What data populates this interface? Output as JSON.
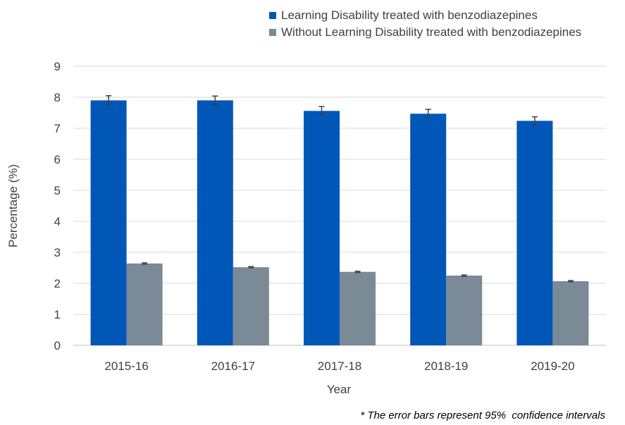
{
  "chart_data": {
    "type": "bar",
    "categories": [
      "2015-16",
      "2016-17",
      "2017-18",
      "2018-19",
      "2019-20"
    ],
    "series": [
      {
        "name": "Learning Disability treated with benzodiazepines",
        "color": "#0057b8",
        "values": [
          7.9,
          7.9,
          7.56,
          7.47,
          7.24
        ],
        "ci_low": [
          7.76,
          7.76,
          7.42,
          7.33,
          7.11
        ],
        "ci_high": [
          8.05,
          8.04,
          7.7,
          7.61,
          7.37
        ]
      },
      {
        "name": "Without Learning Disability treated with benzodiazepines",
        "color": "#7a8a96",
        "values": [
          2.64,
          2.52,
          2.37,
          2.25,
          2.07
        ],
        "ci_low": [
          2.62,
          2.5,
          2.35,
          2.23,
          2.05
        ],
        "ci_high": [
          2.66,
          2.54,
          2.39,
          2.27,
          2.09
        ]
      }
    ],
    "yticks": [
      "0",
      "1",
      "2",
      "3",
      "4",
      "5",
      "6",
      "7",
      "8",
      "9"
    ],
    "ylim": [
      0,
      9
    ],
    "xlabel": "Year",
    "ylabel": "Percentage (%)",
    "grid": true,
    "legend_position": "top-right",
    "error_bars": true
  },
  "footnote": "* The error bars represent 95%  confidence intervals"
}
